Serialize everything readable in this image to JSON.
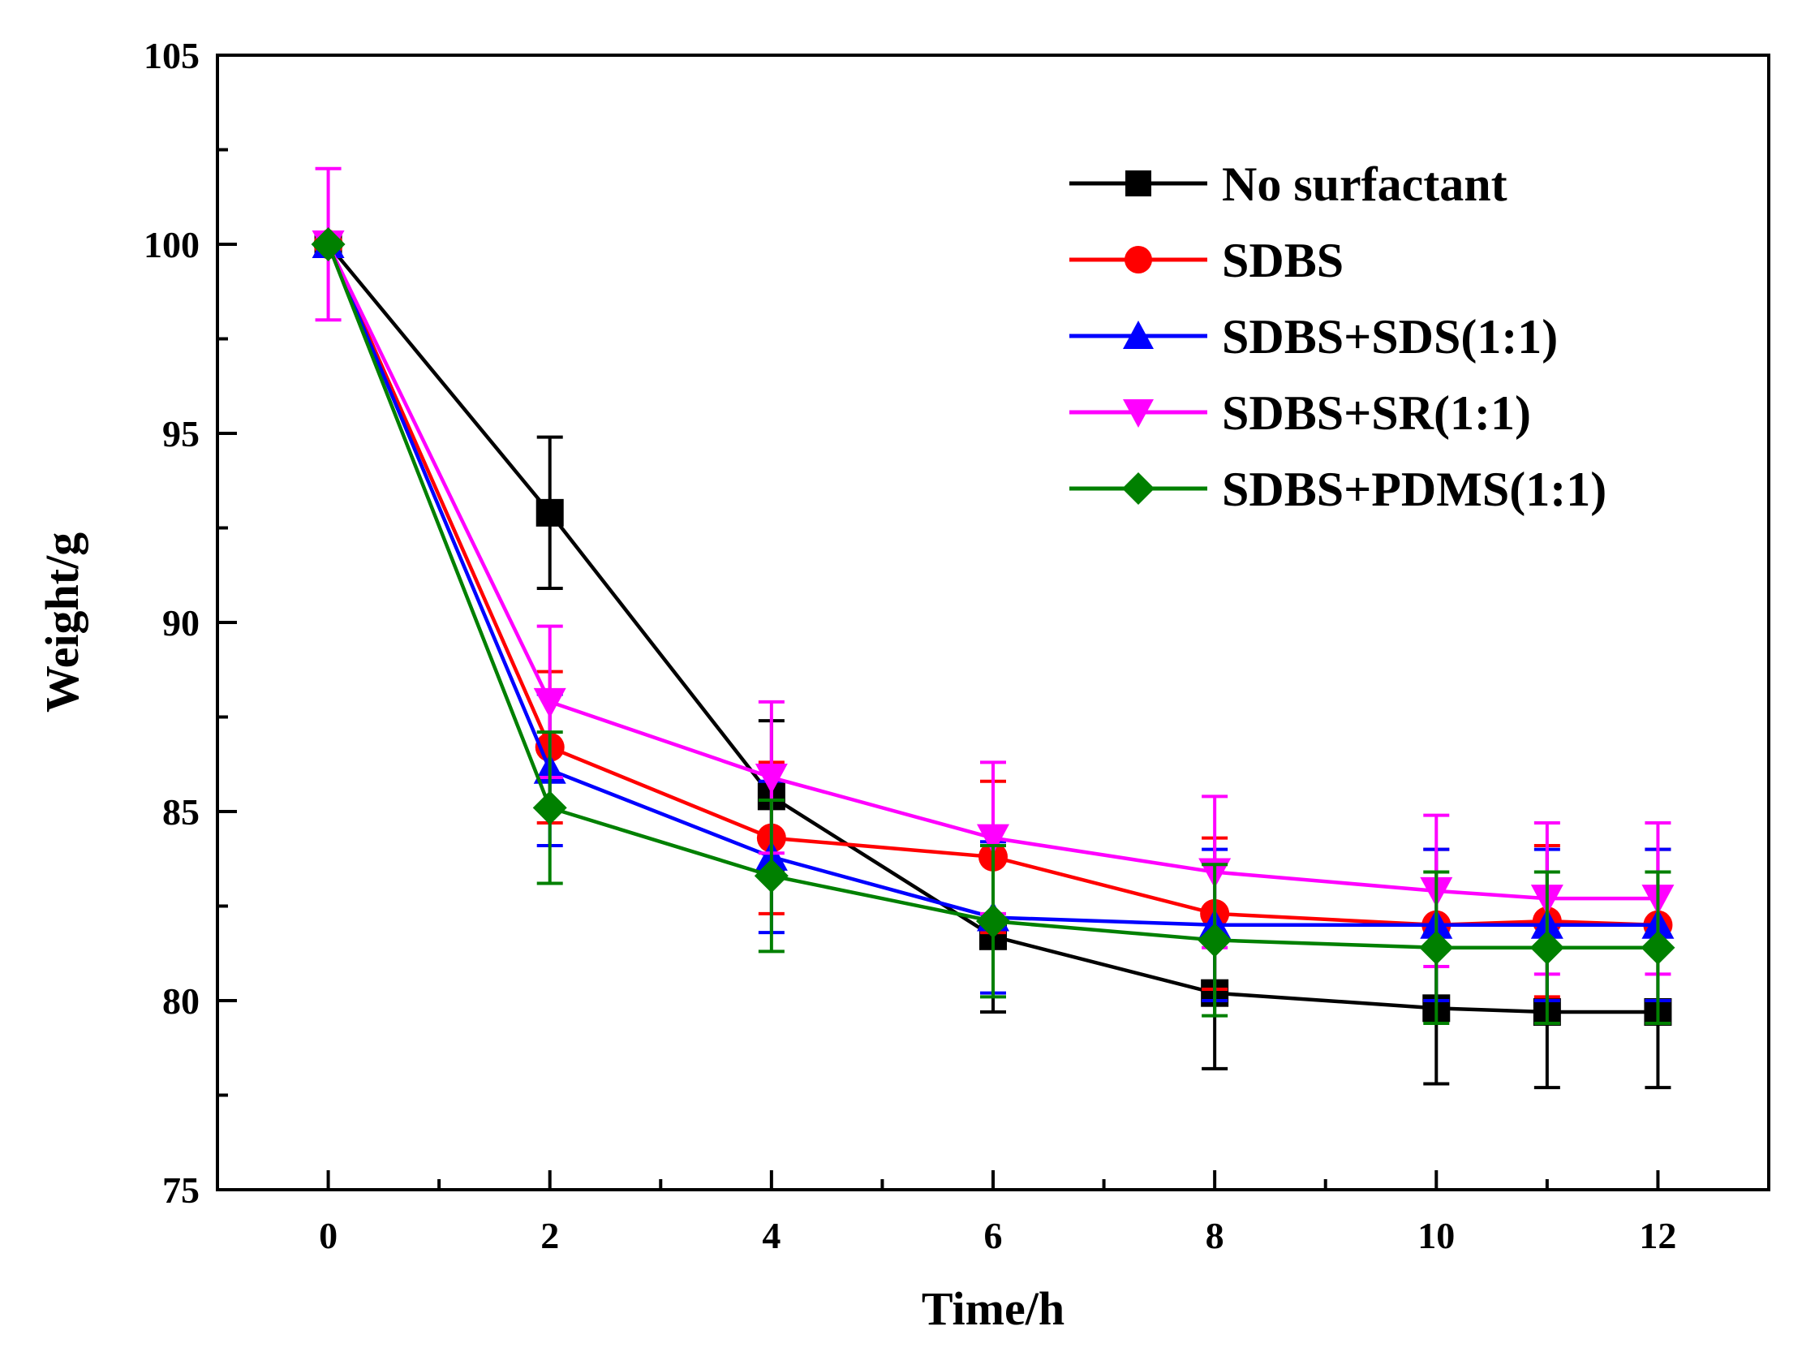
{
  "chart_data": {
    "type": "line",
    "title": "",
    "xlabel": "Time/h",
    "ylabel": "Weight/g",
    "xlim": [
      -1,
      13
    ],
    "ylim": [
      75,
      105
    ],
    "x_ticks": [
      0,
      2,
      4,
      6,
      8,
      10,
      12
    ],
    "x_tick_labels": [
      "0",
      "2",
      "4",
      "6",
      "8",
      "10",
      "12"
    ],
    "y_ticks": [
      75,
      80,
      85,
      90,
      95,
      100,
      105
    ],
    "y_tick_labels": [
      "75",
      "80",
      "85",
      "90",
      "95",
      "100",
      "105"
    ],
    "grid": false,
    "legend_position": "top-right",
    "x": [
      0,
      2,
      4,
      6,
      8,
      10,
      11,
      12
    ],
    "series": [
      {
        "name": "No surfactant",
        "color": "#000000",
        "marker": "square",
        "values": [
          100,
          92.9,
          85.4,
          81.7,
          80.2,
          79.8,
          79.7,
          79.7
        ],
        "errors": [
          0,
          2.0,
          2.0,
          2.0,
          2.0,
          2.0,
          2.0,
          2.0
        ]
      },
      {
        "name": "SDBS",
        "color": "#ff0000",
        "marker": "circle",
        "values": [
          100,
          86.7,
          84.3,
          83.8,
          82.3,
          82.0,
          82.1,
          82.0
        ],
        "errors": [
          0,
          2.0,
          2.0,
          2.0,
          2.0,
          2.0,
          2.0,
          2.0
        ]
      },
      {
        "name": "SDBS+SDS(1:1)",
        "color": "#0000ff",
        "marker": "triangle-up",
        "values": [
          100,
          86.1,
          83.8,
          82.2,
          82.0,
          82.0,
          82.0,
          82.0
        ],
        "errors": [
          0,
          2.0,
          2.0,
          2.0,
          2.0,
          2.0,
          2.0,
          2.0
        ]
      },
      {
        "name": "SDBS+SR(1:1)",
        "color": "#ff00ff",
        "marker": "triangle-down",
        "values": [
          100,
          87.9,
          85.9,
          84.3,
          83.4,
          82.9,
          82.7,
          82.7
        ],
        "errors": [
          2.0,
          2.0,
          2.0,
          2.0,
          2.0,
          2.0,
          2.0,
          2.0
        ]
      },
      {
        "name": "SDBS+PDMS(1:1)",
        "color": "#008000",
        "marker": "diamond",
        "values": [
          100,
          85.1,
          83.3,
          82.1,
          81.6,
          81.4,
          81.4,
          81.4
        ],
        "errors": [
          0,
          2.0,
          2.0,
          2.0,
          2.0,
          2.0,
          2.0,
          2.0
        ]
      }
    ]
  }
}
